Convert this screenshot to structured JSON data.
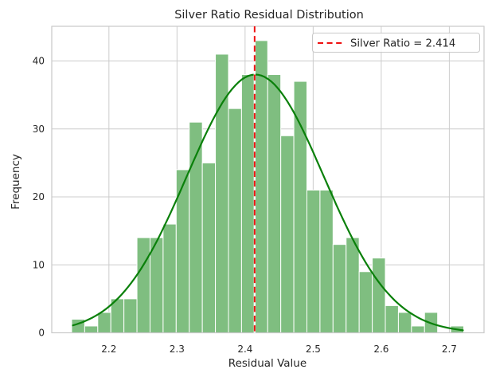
{
  "figure": {
    "title": "Silver Ratio Residual Distribution",
    "xlabel": "Residual Value",
    "ylabel": "Frequency"
  },
  "legend": {
    "label": "Silver Ratio = 2.414"
  },
  "chart_data": {
    "type": "bar",
    "subtype": "histogram_with_kde_overlay",
    "title": "Silver Ratio Residual Distribution",
    "xlabel": "Residual Value",
    "ylabel": "Frequency",
    "total_samples": 500,
    "bin_start": 2.1452,
    "bin_width": 0.0192,
    "counts": [
      2,
      1,
      3,
      5,
      5,
      14,
      14,
      16,
      24,
      31,
      25,
      41,
      33,
      38,
      43,
      38,
      29,
      37,
      21,
      21,
      13,
      14,
      9,
      11,
      4,
      3,
      1,
      3,
      0,
      1
    ],
    "x_ticks": [
      2.2,
      2.3,
      2.4,
      2.5,
      2.6,
      2.7
    ],
    "x_tick_labels": [
      "2.2",
      "2.3",
      "2.4",
      "2.5",
      "2.6",
      "2.7"
    ],
    "y_ticks": [
      0,
      10,
      20,
      30,
      40
    ],
    "y_tick_labels": [
      "0",
      "10",
      "20",
      "30",
      "40"
    ],
    "xlim": [
      2.116,
      2.751
    ],
    "ylim": [
      0,
      45.1
    ],
    "grid": true,
    "legend_position": "upper right",
    "kde": {
      "mean": 2.415,
      "sigma": 0.1005,
      "peak": 38,
      "x_range": [
        2.147,
        2.72
      ]
    },
    "vline": {
      "x": 2.414,
      "label": "Silver Ratio = 2.414",
      "style": "dashed"
    },
    "colors": {
      "bar_fill": "#7fbe80",
      "bar_edge": "#ffffff",
      "kde_line": "#0a800a",
      "vline": "#ee1111",
      "grid": "#cccccc",
      "spine": "#c9c9c9",
      "text": "#262626",
      "background": "#ffffff"
    }
  }
}
